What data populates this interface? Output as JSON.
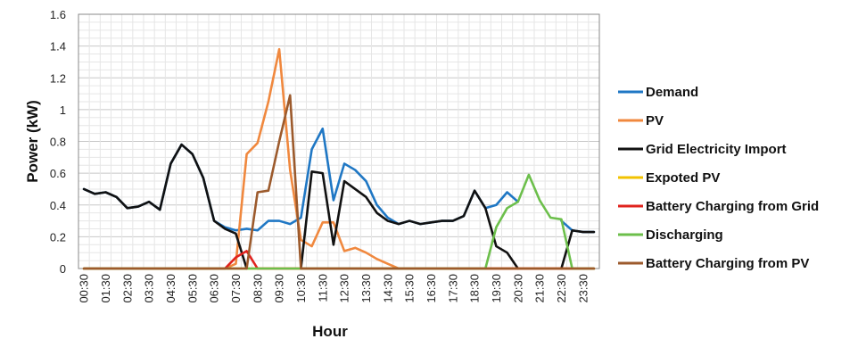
{
  "chart_data": {
    "type": "line",
    "title": "",
    "xlabel": "Hour",
    "ylabel": "Power (kW)",
    "ylim": [
      0,
      1.6
    ],
    "yticks": [
      "0",
      "0.2",
      "0.4",
      "0.6",
      "0.8",
      "1",
      "1.2",
      "1.4",
      "1.6"
    ],
    "grid": true,
    "legend_position": "right",
    "x_tick_labels": [
      "00:30",
      "01:30",
      "02:30",
      "03:30",
      "04:30",
      "05:30",
      "06:30",
      "07:30",
      "08:30",
      "09:30",
      "10:30",
      "11:30",
      "12:30",
      "13:30",
      "14:30",
      "15:30",
      "16:30",
      "17:30",
      "18:30",
      "19:30",
      "20:30",
      "21:30",
      "22:30",
      "23:30"
    ],
    "x": [
      "00:30",
      "01:00",
      "01:30",
      "02:00",
      "02:30",
      "03:00",
      "03:30",
      "04:00",
      "04:30",
      "05:00",
      "05:30",
      "06:00",
      "06:30",
      "07:00",
      "07:30",
      "08:00",
      "08:30",
      "09:00",
      "09:30",
      "10:00",
      "10:30",
      "11:00",
      "11:30",
      "12:00",
      "12:30",
      "13:00",
      "13:30",
      "14:00",
      "14:30",
      "15:00",
      "15:30",
      "16:00",
      "16:30",
      "17:00",
      "17:30",
      "18:00",
      "18:30",
      "19:00",
      "19:30",
      "20:00",
      "20:30",
      "21:00",
      "21:30",
      "22:00",
      "22:30",
      "23:00",
      "23:30",
      "24:00"
    ],
    "series": [
      {
        "name": "Demand",
        "color": "#1f77c4",
        "values": [
          0.5,
          0.47,
          0.48,
          0.45,
          0.38,
          0.39,
          0.42,
          0.37,
          0.66,
          0.78,
          0.72,
          0.57,
          0.3,
          0.26,
          0.24,
          0.25,
          0.24,
          0.3,
          0.3,
          0.28,
          0.32,
          0.75,
          0.88,
          0.43,
          0.66,
          0.62,
          0.55,
          0.4,
          0.32,
          0.28,
          0.3,
          0.28,
          0.29,
          0.3,
          0.3,
          0.33,
          0.49,
          0.38,
          0.4,
          0.48,
          0.42,
          null,
          null,
          null,
          0.3,
          0.24,
          0.23,
          0.23
        ]
      },
      {
        "name": "PV",
        "color": "#f0883e",
        "values": [
          0,
          0,
          0,
          0,
          0,
          0,
          0,
          0,
          0,
          0,
          0,
          0,
          0,
          0,
          0.03,
          0.72,
          0.79,
          1.05,
          1.38,
          0.62,
          0.18,
          0.14,
          0.29,
          0.29,
          0.11,
          0.13,
          0.1,
          0.06,
          0.03,
          0,
          0,
          0,
          0,
          0,
          0,
          0,
          0,
          0,
          0,
          0,
          0,
          0,
          0,
          0,
          0,
          0,
          0,
          0
        ]
      },
      {
        "name": "Grid Electricity Import",
        "color": "#111111",
        "values": [
          0.5,
          0.47,
          0.48,
          0.45,
          0.38,
          0.39,
          0.42,
          0.37,
          0.66,
          0.78,
          0.72,
          0.57,
          0.3,
          0.25,
          0.22,
          0,
          null,
          null,
          null,
          null,
          0,
          0.61,
          0.6,
          0.15,
          0.55,
          0.5,
          0.45,
          0.35,
          0.3,
          0.28,
          0.3,
          0.28,
          0.29,
          0.3,
          0.3,
          0.33,
          0.49,
          0.38,
          0.14,
          0.1,
          0,
          null,
          null,
          null,
          0,
          0.24,
          0.23,
          0.23
        ]
      },
      {
        "name": "Expoted PV",
        "color": "#f2c200",
        "values": [
          0,
          0,
          0,
          0,
          0,
          0,
          0,
          0,
          0,
          0,
          0,
          0,
          0,
          0,
          0,
          0,
          0,
          0,
          0,
          0,
          0,
          0,
          0,
          0,
          0,
          0,
          0,
          0,
          0,
          0,
          0,
          0,
          0,
          0,
          0,
          0,
          0,
          0,
          0,
          0,
          0,
          0,
          0,
          0,
          0,
          0,
          0,
          0
        ]
      },
      {
        "name": "Battery Charging from Grid",
        "color": "#e0231e",
        "values": [
          0,
          0,
          0,
          0,
          0,
          0,
          0,
          0,
          0,
          0,
          0,
          0,
          0,
          0,
          0.07,
          0.11,
          0,
          0,
          0,
          0,
          0,
          0,
          0,
          0,
          0,
          0,
          0,
          0,
          0,
          0,
          0,
          0,
          0,
          0,
          0,
          0,
          0,
          0,
          0,
          0,
          0,
          0,
          0,
          0,
          0,
          0,
          0,
          0
        ]
      },
      {
        "name": "Discharging",
        "color": "#6cbf4b",
        "values": [
          0,
          0,
          0,
          0,
          0,
          0,
          0,
          0,
          0,
          0,
          0,
          0,
          0,
          0,
          0,
          0,
          0,
          0,
          0,
          0,
          0,
          0,
          0,
          0,
          0,
          0,
          0,
          0,
          0,
          0,
          0,
          0,
          0,
          0,
          0,
          0,
          0,
          0,
          0.26,
          0.38,
          0.42,
          0.59,
          0.43,
          0.32,
          0.31,
          0,
          0,
          0
        ]
      },
      {
        "name": "Battery Charging from PV",
        "color": "#9c5a2c",
        "values": [
          0,
          0,
          0,
          0,
          0,
          0,
          0,
          0,
          0,
          0,
          0,
          0,
          0,
          0,
          0,
          0,
          0.48,
          0.49,
          0.8,
          1.09,
          0,
          0,
          0,
          0,
          0,
          0,
          0,
          0,
          0,
          0,
          0,
          0,
          0,
          0,
          0,
          0,
          0,
          0,
          0,
          0,
          0,
          0,
          0,
          0,
          0,
          0,
          0,
          0
        ]
      }
    ]
  }
}
